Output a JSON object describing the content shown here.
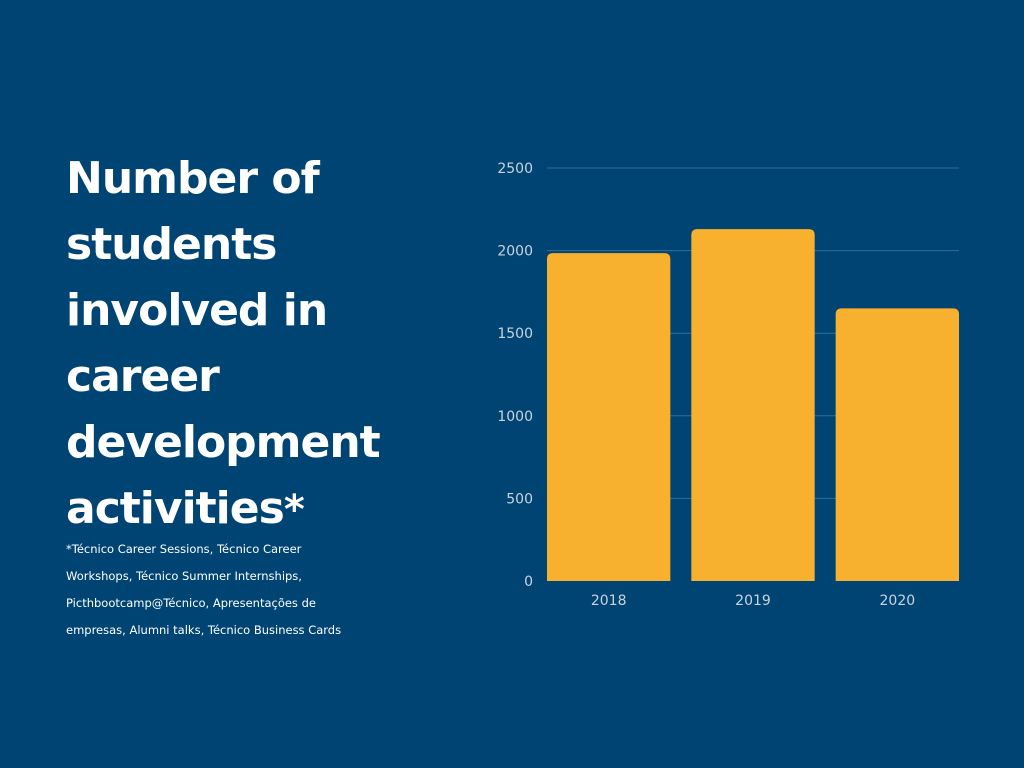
{
  "title": {
    "lines": [
      "Number of",
      "students",
      "involved in",
      "career",
      "development",
      "activities"
    ],
    "marker": "*"
  },
  "footnote": {
    "lines": [
      "*Técnico Career Sessions, Técnico Career",
      "Workshops, Técnico Summer Internships,",
      "Picthbootcamp@Técnico, Apresentações de",
      "empresas, Alumni talks, Técnico Business Cards"
    ]
  },
  "colors": {
    "background": "#004473",
    "bar": "#f7b12e",
    "grid": "#2f6e99",
    "text": "#ffffff",
    "tick": "#c9d3dd"
  },
  "chart_data": {
    "type": "bar",
    "categories": [
      "2018",
      "2019",
      "2020"
    ],
    "values": [
      1985,
      2130,
      1650
    ],
    "title": "",
    "xlabel": "",
    "ylabel": "",
    "ylim": [
      0,
      2500
    ],
    "yticks": [
      0,
      500,
      1000,
      1500,
      2000,
      2500
    ],
    "grid": true,
    "legend": "none"
  }
}
